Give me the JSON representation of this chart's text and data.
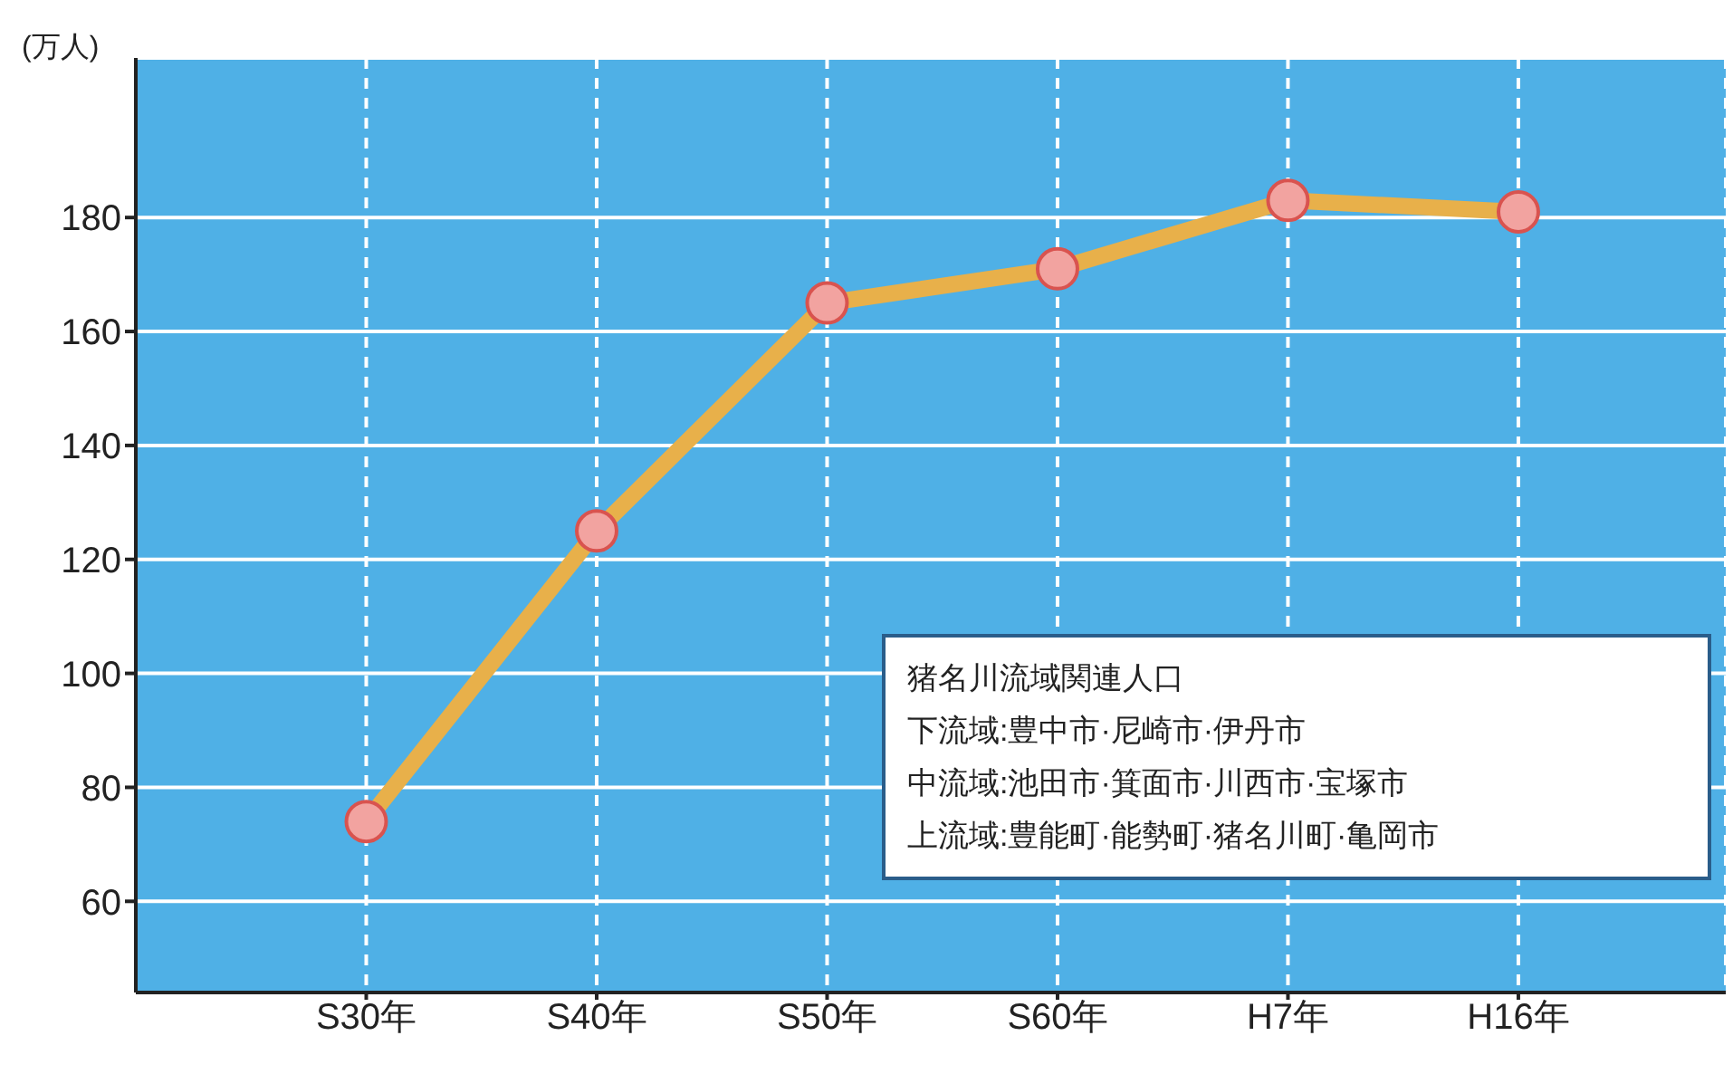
{
  "chart_data": {
    "type": "line",
    "ylabel": "(万人)",
    "categories": [
      "S30年",
      "S40年",
      "S50年",
      "S60年",
      "H7年",
      "H16年"
    ],
    "series": [
      {
        "color": "#e8b04a",
        "values": [
          74,
          125,
          165,
          171,
          183,
          181
        ]
      }
    ],
    "ylim": [
      44,
      208
    ],
    "yticks": [
      60,
      80,
      100,
      120,
      140,
      160,
      180
    ],
    "grid": true,
    "marker": "circle",
    "annotations": [
      "猪名川流域関連人口",
      "下流域:豊中市·尼崎市·伊丹市",
      "中流域:池田市·箕面市·川西市·宝塚市",
      "上流域:豊能町·能勢町·猪名川町·亀岡市"
    ]
  }
}
